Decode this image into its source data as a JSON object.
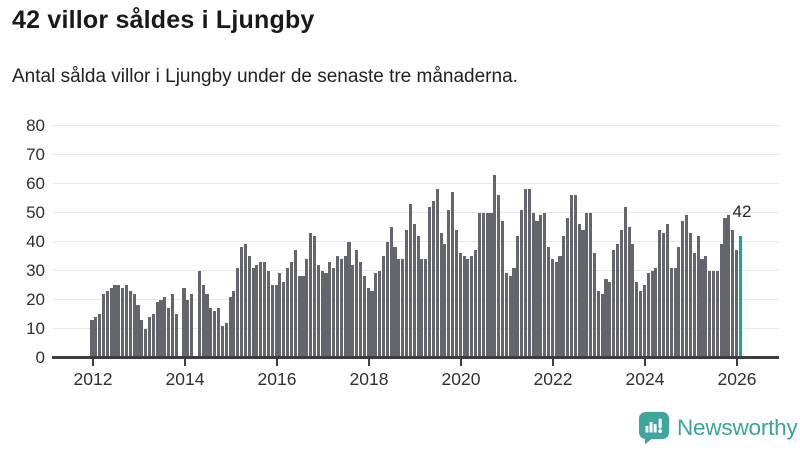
{
  "header": {
    "title": "42 villor såldes i Ljungby",
    "subtitle": "Antal sålda villor i Ljungby under de senaste tre månaderna."
  },
  "chart_data": {
    "type": "bar",
    "title": "42 villor såldes i Ljungby",
    "xlabel": "",
    "ylabel": "",
    "frequency": "monthly",
    "start_month": "2012-01",
    "end_month": "2026-02",
    "ylim": [
      0,
      80
    ],
    "y_ticks": [
      0,
      10,
      20,
      30,
      40,
      50,
      60,
      70,
      80
    ],
    "x_tick_years": [
      2012,
      2014,
      2016,
      2018,
      2020,
      2022,
      2024,
      2026
    ],
    "grid": true,
    "legend": false,
    "bar_color": "#65656d",
    "values": [
      13,
      14,
      15,
      22,
      23,
      24,
      25,
      25,
      24,
      25,
      23,
      22,
      18,
      13,
      10,
      14,
      15,
      19,
      20,
      21,
      17,
      22,
      15,
      0,
      24,
      20,
      22,
      0,
      30,
      25,
      22,
      17,
      16,
      17,
      11,
      12,
      21,
      23,
      31,
      38,
      39,
      35,
      31,
      32,
      33,
      33,
      30,
      25,
      25,
      29,
      26,
      31,
      33,
      37,
      28,
      28,
      34,
      43,
      42,
      32,
      30,
      29,
      33,
      31,
      35,
      34,
      35,
      40,
      32,
      37,
      33,
      28,
      24,
      23,
      29,
      30,
      35,
      40,
      45,
      38,
      34,
      34,
      44,
      53,
      46,
      42,
      34,
      34,
      52,
      54,
      58,
      43,
      39,
      51,
      57,
      44,
      36,
      35,
      34,
      35,
      37,
      50,
      50,
      50,
      50,
      63,
      56,
      47,
      29,
      28,
      31,
      42,
      51,
      58,
      58,
      50,
      47,
      49,
      50,
      38,
      34,
      33,
      35,
      42,
      48,
      56,
      56,
      46,
      44,
      50,
      50,
      36,
      23,
      22,
      27,
      26,
      37,
      39,
      44,
      52,
      45,
      39,
      26,
      23,
      25,
      29,
      30,
      31,
      44,
      43,
      46,
      31,
      31,
      38,
      47,
      49,
      43,
      36,
      42,
      34,
      35,
      30,
      30,
      30,
      39,
      48,
      49,
      44,
      37,
      42
    ],
    "highlight": {
      "index": 169,
      "value": 42,
      "label": "42",
      "color": "#0fa7a0"
    }
  },
  "footer": {
    "brand": "Newsworthy",
    "logo_color": "#3ea69d",
    "logo_icon": "bar-chart-speech-bubble"
  }
}
